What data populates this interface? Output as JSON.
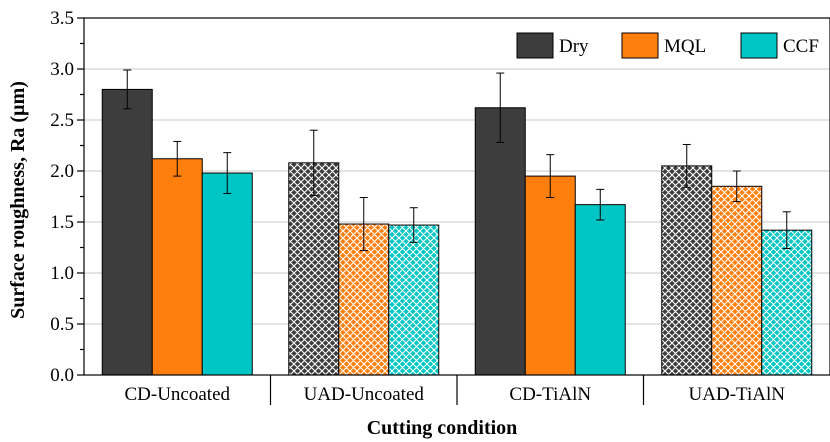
{
  "chart_data": {
    "type": "bar",
    "title": "",
    "xlabel": "Cutting condition",
    "ylabel": "Surface roughness, Ra (µm)",
    "ylim": [
      0.0,
      3.5
    ],
    "yticks": [
      "0.0",
      "0.5",
      "1.0",
      "1.5",
      "2.0",
      "2.5",
      "3.0",
      "3.5"
    ],
    "grid": true,
    "legend_position": "top-right",
    "categories": [
      "CD-Uncoated",
      "UAD-Uncoated",
      "CD-TiAlN",
      "UAD-TiAlN"
    ],
    "category_patterns": [
      "solid",
      "crosshatch",
      "solid",
      "crosshatch"
    ],
    "series": [
      {
        "name": "Dry",
        "color": "#3d3d3d",
        "values": [
          2.8,
          2.08,
          2.62,
          2.05
        ],
        "error": [
          0.19,
          0.32,
          0.34,
          0.21
        ]
      },
      {
        "name": "MQL",
        "color": "#ff7f0e",
        "values": [
          2.12,
          1.48,
          1.95,
          1.85
        ],
        "error": [
          0.17,
          0.26,
          0.21,
          0.15
        ]
      },
      {
        "name": "CCF",
        "color": "#00c5c5",
        "values": [
          1.98,
          1.47,
          1.67,
          1.42
        ],
        "error": [
          0.2,
          0.17,
          0.15,
          0.18
        ]
      }
    ]
  }
}
